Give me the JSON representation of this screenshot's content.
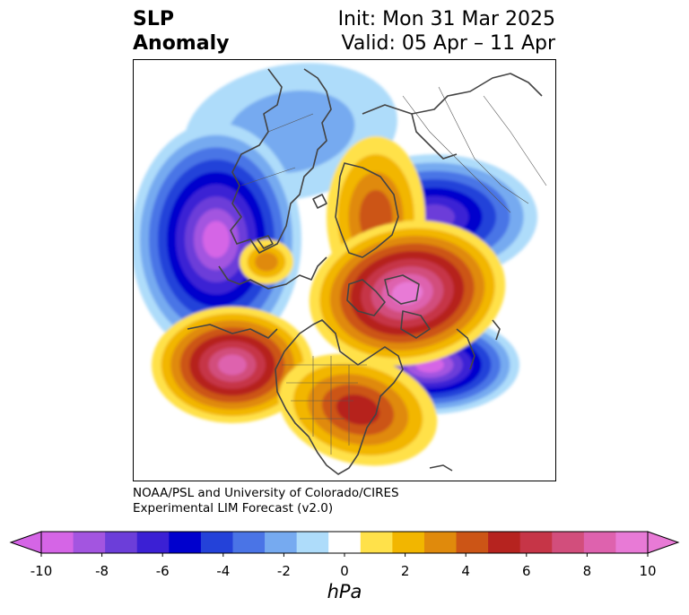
{
  "title": {
    "left_line1": "SLP",
    "left_line2": "Anomaly",
    "right_line1": "Init: Mon 31 Mar 2025",
    "right_line2": "Valid: 05 Apr – 11 Apr"
  },
  "credit": {
    "line1": "NOAA/PSL and University of Colorado/CIRES",
    "line2": "Experimental LIM Forecast (v2.0)"
  },
  "colorbar": {
    "units": "hPa",
    "tick_labels": [
      "-10",
      "-8",
      "-6",
      "-4",
      "-2",
      "0",
      "2",
      "4",
      "6",
      "8",
      "10"
    ],
    "levels": [
      -10,
      -9,
      -8,
      -7,
      -6,
      -5,
      -4,
      -3,
      -2,
      -1,
      1,
      2,
      3,
      4,
      5,
      6,
      7,
      8,
      9,
      10
    ],
    "colors": [
      "#d565e6",
      "#a355e0",
      "#6c3ed9",
      "#3b20d4",
      "#0000cd",
      "#2442d9",
      "#4a74e6",
      "#76aaf0",
      "#aedcfa",
      "#ffffff",
      "#ffe14a",
      "#f2b600",
      "#e08a0c",
      "#cc5516",
      "#b6231f",
      "#c63547",
      "#d24e7c",
      "#de62ae",
      "#e87ad6"
    ],
    "extend_low_color": "#d565e6",
    "extend_high_color": "#e87ad6"
  },
  "map": {
    "projection": "north-polar-stereographic",
    "field": "sea level pressure anomaly",
    "features": [
      {
        "name": "north-atlantic-low",
        "sign": "negative",
        "peak_hpa": -10
      },
      {
        "name": "siberia-low",
        "sign": "negative",
        "peak_hpa": -7
      },
      {
        "name": "europe-low",
        "sign": "negative",
        "peak_hpa": -2
      },
      {
        "name": "western-atlantic-low",
        "sign": "negative",
        "peak_hpa": -10
      },
      {
        "name": "arctic-canada-high",
        "sign": "positive",
        "peak_hpa": 10
      },
      {
        "name": "north-pacific-high",
        "sign": "positive",
        "peak_hpa": 8
      },
      {
        "name": "eastern-us-high",
        "sign": "positive",
        "peak_hpa": 5
      },
      {
        "name": "greenland-sea-high",
        "sign": "positive",
        "peak_hpa": 3
      },
      {
        "name": "russia-high",
        "sign": "positive",
        "peak_hpa": 4
      }
    ]
  }
}
